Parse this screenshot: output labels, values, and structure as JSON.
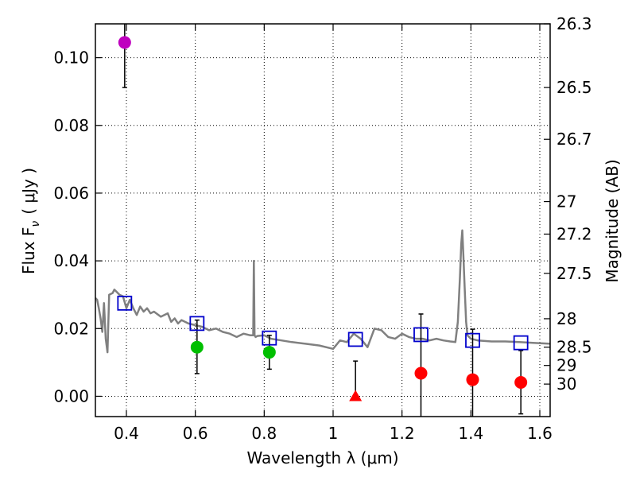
{
  "chart_data": {
    "type": "scatter",
    "xlabel": "Wavelength  λ (μm)",
    "ylabel": "Flux  F",
    "ylabel_sub": "ν",
    "ylabel_unit": "( μJy )",
    "y2label": "Magnitude (AB)",
    "xlim": [
      0.31,
      1.63
    ],
    "ylim": [
      -0.006,
      0.11
    ],
    "x_ticks": [
      0.4,
      0.6,
      0.8,
      1.0,
      1.2,
      1.4,
      1.6
    ],
    "x_tick_labels": [
      "0.4",
      "0.6",
      "0.8",
      "1",
      "1.2",
      "1.4",
      "1.6"
    ],
    "y_ticks": [
      0.0,
      0.02,
      0.04,
      0.06,
      0.08,
      0.1
    ],
    "y_tick_labels": [
      "0.00",
      "0.02",
      "0.04",
      "0.06",
      "0.08",
      "0.10"
    ],
    "mag_ticks": [
      {
        "label": "26.3",
        "flux": 0.11
      },
      {
        "label": "26.5",
        "flux": 0.0912
      },
      {
        "label": "26.7",
        "flux": 0.0759
      },
      {
        "label": "27",
        "flux": 0.0575
      },
      {
        "label": "27.2",
        "flux": 0.0479
      },
      {
        "label": "27.5",
        "flux": 0.0363
      },
      {
        "label": "28",
        "flux": 0.0229
      },
      {
        "label": "28.5",
        "flux": 0.0145
      },
      {
        "label": "29",
        "flux": 0.0091
      },
      {
        "label": "30",
        "flux": 0.0036
      }
    ],
    "grid": true,
    "colors": {
      "model": "#808080",
      "model_phot": "#0000cc",
      "purple": "#bf00bf",
      "green": "#00bf00",
      "red": "#ff0000",
      "errorbar": "#000000"
    },
    "model_spectrum": {
      "x": [
        0.31,
        0.315,
        0.32,
        0.325,
        0.33,
        0.335,
        0.34,
        0.345,
        0.35,
        0.36,
        0.365,
        0.37,
        0.38,
        0.39,
        0.4,
        0.41,
        0.42,
        0.43,
        0.44,
        0.45,
        0.46,
        0.47,
        0.48,
        0.5,
        0.52,
        0.53,
        0.54,
        0.55,
        0.56,
        0.58,
        0.6,
        0.62,
        0.64,
        0.66,
        0.68,
        0.7,
        0.72,
        0.74,
        0.76,
        0.768,
        0.77,
        0.772,
        0.775,
        0.78,
        0.8,
        0.82,
        0.85,
        0.88,
        0.92,
        0.96,
        1.0,
        1.02,
        1.04,
        1.06,
        1.08,
        1.1,
        1.12,
        1.14,
        1.16,
        1.18,
        1.2,
        1.22,
        1.24,
        1.26,
        1.28,
        1.3,
        1.32,
        1.34,
        1.355,
        1.362,
        1.368,
        1.372,
        1.375,
        1.378,
        1.382,
        1.386,
        1.39,
        1.4,
        1.42,
        1.46,
        1.5,
        1.54,
        1.58,
        1.63
      ],
      "y": [
        0.029,
        0.0285,
        0.026,
        0.023,
        0.019,
        0.0275,
        0.017,
        0.013,
        0.03,
        0.0305,
        0.0315,
        0.031,
        0.03,
        0.0295,
        0.026,
        0.0285,
        0.026,
        0.024,
        0.0265,
        0.025,
        0.026,
        0.0245,
        0.025,
        0.0235,
        0.0245,
        0.022,
        0.023,
        0.0215,
        0.0225,
        0.0215,
        0.021,
        0.0205,
        0.0195,
        0.02,
        0.019,
        0.0185,
        0.0175,
        0.0185,
        0.018,
        0.018,
        0.04,
        0.018,
        0.0175,
        0.0178,
        0.018,
        0.017,
        0.0165,
        0.016,
        0.0155,
        0.015,
        0.014,
        0.0165,
        0.016,
        0.0185,
        0.017,
        0.0145,
        0.02,
        0.0195,
        0.0175,
        0.017,
        0.0185,
        0.0175,
        0.017,
        0.017,
        0.0165,
        0.017,
        0.0165,
        0.0162,
        0.016,
        0.022,
        0.035,
        0.045,
        0.049,
        0.042,
        0.032,
        0.022,
        0.018,
        0.017,
        0.0165,
        0.0162,
        0.0162,
        0.016,
        0.0158,
        0.0155
      ]
    },
    "series": [
      {
        "name": "model photometry",
        "marker": "open-square",
        "color": "#0000cc",
        "x": [
          0.395,
          0.605,
          0.815,
          1.065,
          1.255,
          1.405,
          1.545
        ],
        "y": [
          0.0275,
          0.0215,
          0.0172,
          0.0168,
          0.0182,
          0.0165,
          0.0158
        ]
      },
      {
        "name": "purple detection",
        "marker": "circle",
        "color": "#bf00bf",
        "x": [
          0.395
        ],
        "y": [
          0.1045
        ],
        "yerr_low": [
          0.0912
        ],
        "yerr_high": [
          0.11
        ]
      },
      {
        "name": "green detections",
        "marker": "circle",
        "color": "#00bf00",
        "x": [
          0.605,
          0.815
        ],
        "y": [
          0.0145,
          0.013
        ],
        "yerr_low": [
          0.0067,
          0.008
        ],
        "yerr_high": [
          0.0225,
          0.018
        ]
      },
      {
        "name": "red detections",
        "marker": "circle",
        "color": "#ff0000",
        "x": [
          1.255,
          1.405,
          1.545
        ],
        "y": [
          0.0068,
          0.0049,
          0.0041
        ],
        "yerr_low": [
          -0.0065,
          -0.0065,
          -0.0052
        ],
        "yerr_high": [
          0.0243,
          0.0198,
          0.0135
        ]
      },
      {
        "name": "red upper limit",
        "marker": "triangle",
        "color": "#ff0000",
        "x": [
          1.065
        ],
        "y": [
          0.0
        ],
        "yerr_low": [
          0.0
        ],
        "yerr_high": [
          0.0104
        ]
      }
    ]
  }
}
